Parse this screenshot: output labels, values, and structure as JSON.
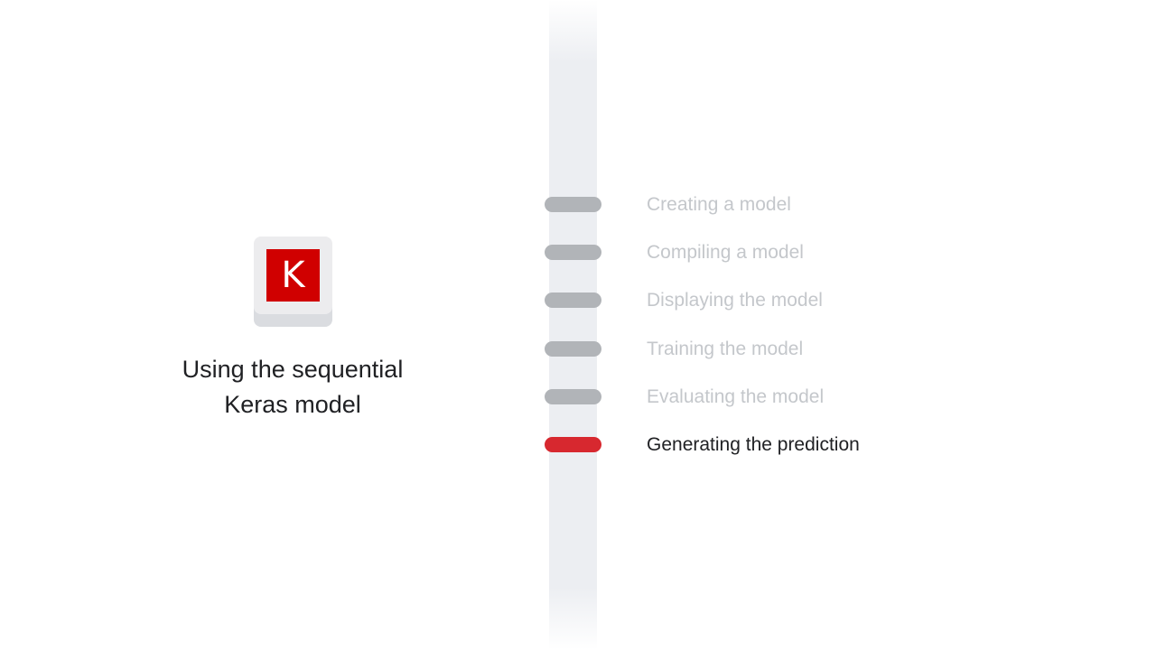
{
  "logo": {
    "letter": "K"
  },
  "title": {
    "line1": "Using the sequential",
    "line2": "Keras model"
  },
  "steps": [
    {
      "label": "Creating a model",
      "active": false
    },
    {
      "label": "Compiling a model",
      "active": false
    },
    {
      "label": "Displaying the model",
      "active": false
    },
    {
      "label": "Training the model",
      "active": false
    },
    {
      "label": "Evaluating the model",
      "active": false
    },
    {
      "label": "Generating the prediction",
      "active": true
    }
  ],
  "colors": {
    "accent": "#d7282f",
    "inactive_pill": "#b1b4b8",
    "inactive_text": "#c4c7cb",
    "active_text": "#202124",
    "logo_red": "#d00000"
  }
}
